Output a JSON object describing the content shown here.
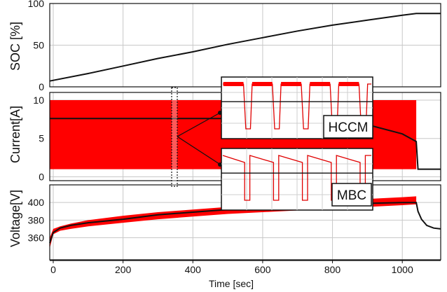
{
  "chart_data": {
    "type": "line",
    "xlabel": "Time [sec]",
    "xlim": [
      -10,
      1110
    ],
    "xticks": [
      "0",
      "200",
      "400",
      "600",
      "800",
      "1000"
    ],
    "xtick_values": [
      0,
      200,
      400,
      600,
      800,
      1000
    ],
    "panels": [
      {
        "id": "soc",
        "ylabel": "SOC [%]",
        "ylim": [
          0,
          100
        ],
        "yticks": [
          "0",
          "50",
          "100"
        ],
        "ytick_values": [
          0,
          50,
          100
        ],
        "grid": true,
        "series": [
          {
            "style": "line",
            "color": "#111111",
            "x": [
              -10,
              100,
              200,
              300,
              400,
              500,
              600,
              700,
              800,
              900,
              1000,
              1040,
              1110
            ],
            "y": [
              7,
              16,
              25,
              34,
              42,
              51,
              59,
              67,
              74,
              80,
              86,
              88,
              88
            ]
          }
        ]
      },
      {
        "id": "current",
        "ylabel": "Current[A]",
        "ylim": [
          -0.5,
          11
        ],
        "yticks": [
          "0",
          "5",
          "10"
        ],
        "ytick_values": [
          0,
          5,
          10
        ],
        "grid": true,
        "series": [
          {
            "style": "band",
            "color": "#ff0000",
            "x": [
              -10,
              1040
            ],
            "ylow": [
              1,
              1
            ],
            "yhigh": [
              10,
              10
            ]
          },
          {
            "style": "line",
            "color": "#111111",
            "x": [
              -10,
              500,
              900,
              1000,
              1040,
              1045,
              1110
            ],
            "y": [
              7.6,
              7.6,
              6.8,
              5.6,
              4.6,
              1,
              1
            ]
          }
        ]
      },
      {
        "id": "voltage",
        "ylabel": "Voltage[V]",
        "ylim": [
          335,
          420
        ],
        "yticks": [
          "360",
          "380",
          "400"
        ],
        "ytick_values": [
          360,
          380,
          400
        ],
        "grid": true,
        "series": [
          {
            "style": "band",
            "color": "#ff0000",
            "x": [
              -10,
              0,
              20,
              50,
              100,
              200,
              300,
              400,
              500,
              600,
              700,
              800,
              900,
              1000,
              1040
            ],
            "ylow": [
              348,
              364,
              368,
              370,
              373,
              377,
              381,
              384,
              387,
              389,
              391,
              393,
              395,
              397,
              398
            ],
            "yhigh": [
              360,
              370,
              373,
              376,
              380,
              385,
              389,
              392,
              395,
              398,
              400,
              402,
              404,
              406,
              407
            ]
          },
          {
            "style": "line",
            "color": "#111111",
            "x": [
              -10,
              0,
              20,
              50,
              100,
              200,
              300,
              400,
              500,
              600,
              700,
              800,
              900,
              1000,
              1040,
              1045,
              1055,
              1070,
              1090,
              1110
            ],
            "y": [
              354,
              366,
              371,
              374,
              377,
              381,
              386,
              389,
              392,
              394,
              396,
              398,
              399,
              400,
              400,
              390,
              381,
              374,
              371,
              370
            ]
          }
        ]
      }
    ],
    "annotations": [
      {
        "label": "HCCM",
        "waveform": "hccm"
      },
      {
        "label": "MBC",
        "waveform": "mbc"
      }
    ]
  }
}
